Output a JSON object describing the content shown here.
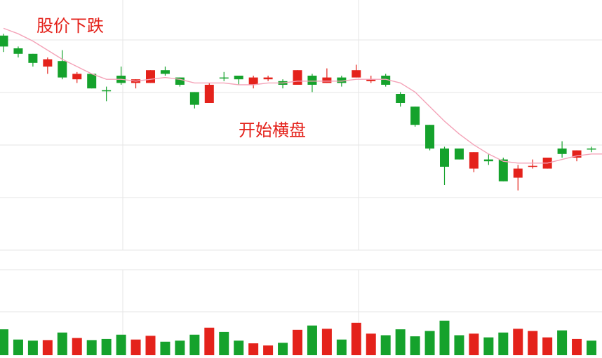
{
  "chart_data": {
    "type": "candlestick",
    "title": "",
    "xlabel": "",
    "ylabel": "",
    "ylim": [
      0,
      100
    ],
    "volume_ylim": [
      0,
      100
    ],
    "grid": true,
    "annotations": [
      {
        "text": "股价下跌"
      },
      {
        "text": "开始横盘"
      }
    ],
    "colors": {
      "up": "#e4221b",
      "down": "#15a22c",
      "ma": "#f4a3b8",
      "grid": "#e6e6e6"
    },
    "candles": [
      {
        "open": 92,
        "close": 86,
        "high": 93,
        "low": 83,
        "volume": 48
      },
      {
        "open": 85,
        "close": 82,
        "high": 86,
        "low": 80,
        "volume": 29
      },
      {
        "open": 82,
        "close": 77,
        "high": 82,
        "low": 75,
        "volume": 27
      },
      {
        "open": 75,
        "close": 79,
        "high": 80,
        "low": 71,
        "volume": 28
      },
      {
        "open": 78,
        "close": 69,
        "high": 84,
        "low": 68,
        "volume": 42
      },
      {
        "open": 68,
        "close": 71,
        "high": 72,
        "low": 66,
        "volume": 32
      },
      {
        "open": 71,
        "close": 63,
        "high": 71,
        "low": 63,
        "volume": 28
      },
      {
        "open": 62,
        "close": 61.5,
        "high": 64,
        "low": 56,
        "volume": 30
      },
      {
        "open": 70,
        "close": 66,
        "high": 75,
        "low": 65,
        "volume": 38
      },
      {
        "open": 66,
        "close": 68,
        "high": 68,
        "low": 63,
        "volume": 29
      },
      {
        "open": 66,
        "close": 73,
        "high": 73,
        "low": 66,
        "volume": 36
      },
      {
        "open": 73,
        "close": 71,
        "high": 75,
        "low": 70,
        "volume": 25
      },
      {
        "open": 69,
        "close": 65,
        "high": 69,
        "low": 64,
        "volume": 27
      },
      {
        "open": 61,
        "close": 54,
        "high": 61,
        "low": 52,
        "volume": 38
      },
      {
        "open": 55,
        "close": 65,
        "high": 66,
        "low": 55,
        "volume": 51
      },
      {
        "open": 69,
        "close": 68.5,
        "high": 72,
        "low": 67,
        "volume": 43
      },
      {
        "open": 70,
        "close": 68,
        "high": 70,
        "low": 65,
        "volume": 27
      },
      {
        "open": 65,
        "close": 69,
        "high": 70,
        "low": 63,
        "volume": 22
      },
      {
        "open": 68,
        "close": 69,
        "high": 70,
        "low": 67,
        "volume": 18
      },
      {
        "open": 67,
        "close": 65,
        "high": 68,
        "low": 63,
        "volume": 23
      },
      {
        "open": 65,
        "close": 73,
        "high": 73,
        "low": 65,
        "volume": 47
      },
      {
        "open": 70,
        "close": 65,
        "high": 71,
        "low": 61,
        "volume": 55
      },
      {
        "open": 66,
        "close": 69,
        "high": 74,
        "low": 66,
        "volume": 49
      },
      {
        "open": 69,
        "close": 66,
        "high": 70,
        "low": 64,
        "volume": 29
      },
      {
        "open": 69,
        "close": 73,
        "high": 76,
        "low": 69,
        "volume": 60
      },
      {
        "open": 67,
        "close": 68,
        "high": 70,
        "low": 66,
        "volume": 40
      },
      {
        "open": 70,
        "close": 65,
        "high": 71,
        "low": 64,
        "volume": 37
      },
      {
        "open": 60,
        "close": 55,
        "high": 61,
        "low": 53,
        "volume": 48
      },
      {
        "open": 53,
        "close": 43,
        "high": 53,
        "low": 42,
        "volume": 35
      },
      {
        "open": 43,
        "close": 30,
        "high": 43,
        "low": 29,
        "volume": 45
      },
      {
        "open": 30,
        "close": 20,
        "high": 31,
        "low": 10,
        "volume": 64
      },
      {
        "open": 30,
        "close": 24,
        "high": 30,
        "low": 24,
        "volume": 37
      },
      {
        "open": 19,
        "close": 28,
        "high": 28,
        "low": 17,
        "volume": 40
      },
      {
        "open": 24,
        "close": 23,
        "high": 27,
        "low": 21,
        "volume": 33
      },
      {
        "open": 24,
        "close": 12,
        "high": 25,
        "low": 12,
        "volume": 42
      },
      {
        "open": 14,
        "close": 19,
        "high": 21,
        "low": 7,
        "volume": 49
      },
      {
        "open": 20,
        "close": 20.5,
        "high": 24,
        "low": 19,
        "volume": 45
      },
      {
        "open": 19,
        "close": 25,
        "high": 25,
        "low": 19,
        "volume": 33
      },
      {
        "open": 30,
        "close": 27,
        "high": 34,
        "low": 25,
        "volume": 46
      },
      {
        "open": 25,
        "close": 29,
        "high": 29,
        "low": 23,
        "volume": 30
      },
      {
        "open": 30,
        "close": 29.5,
        "high": 31,
        "low": 28,
        "volume": 27
      }
    ],
    "ma": [
      96,
      93,
      89,
      84,
      79,
      75,
      71,
      68,
      68,
      67,
      68,
      69,
      68,
      66,
      66,
      66,
      65,
      65,
      66,
      66,
      67,
      67,
      67,
      67,
      68,
      68,
      68,
      66,
      61,
      53,
      45,
      38,
      32,
      27,
      23,
      22,
      22,
      22,
      24,
      26,
      27
    ]
  }
}
